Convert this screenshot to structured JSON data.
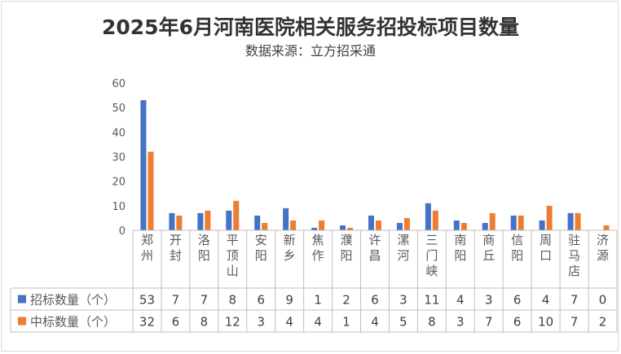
{
  "chart_data": {
    "type": "bar",
    "title": "2025年6月河南医院相关服务招投标项目数量",
    "subtitle": "数据来源：立方招采通",
    "categories": [
      "郑州",
      "开封",
      "洛阳",
      "平顶山",
      "安阳",
      "新乡",
      "焦作",
      "濮阳",
      "许昌",
      "漯河",
      "三门峡",
      "南阳",
      "商丘",
      "信阳",
      "周口",
      "驻马店",
      "济源"
    ],
    "series": [
      {
        "name": "招标数量（个）",
        "color": "#4472c4",
        "values": [
          53,
          7,
          7,
          8,
          6,
          9,
          1,
          2,
          6,
          3,
          11,
          4,
          3,
          6,
          4,
          7,
          0
        ]
      },
      {
        "name": "中标数量（个）",
        "color": "#ed7d31",
        "values": [
          32,
          6,
          8,
          12,
          3,
          4,
          4,
          1,
          4,
          5,
          8,
          3,
          7,
          6,
          10,
          7,
          2
        ]
      }
    ],
    "ylim": [
      0,
      60
    ],
    "yticks": [
      0,
      10,
      20,
      30,
      40,
      50,
      60
    ],
    "grid": false,
    "legend": "data-table"
  }
}
